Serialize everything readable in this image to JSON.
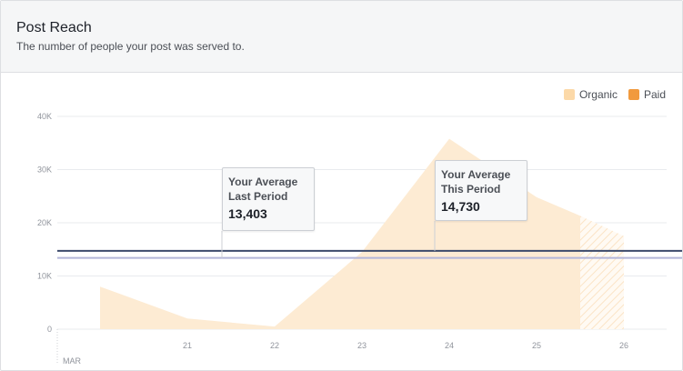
{
  "header": {
    "title": "Post Reach",
    "subtitle": "The number of people your post was served to."
  },
  "legend": [
    {
      "label": "Organic",
      "color": "#fcd9a8"
    },
    {
      "label": "Paid",
      "color": "#f19a3e"
    }
  ],
  "callouts": {
    "last_period": {
      "label": "Your Average\nLast Period",
      "value": "13,403"
    },
    "this_period": {
      "label": "Your Average\nThis Period",
      "value": "14,730"
    }
  },
  "chart_data": {
    "type": "area",
    "x": [
      "20",
      "21",
      "22",
      "23",
      "24",
      "25",
      "25.5",
      "26"
    ],
    "x_tick_labels": [
      "21",
      "22",
      "23",
      "24",
      "25",
      "26"
    ],
    "x_start_label": "MAR",
    "y_tick_labels": [
      "0",
      "10K",
      "20K",
      "30K",
      "40K"
    ],
    "ylim": [
      0,
      40000
    ],
    "grid": true,
    "legend_placement": "top-right",
    "series": [
      {
        "name": "Organic",
        "color": "#fdebd3",
        "points": [
          {
            "x": 20.0,
            "y": 8000
          },
          {
            "x": 21.0,
            "y": 2000
          },
          {
            "x": 22.0,
            "y": 500
          },
          {
            "x": 23.0,
            "y": 14500
          },
          {
            "x": 24.0,
            "y": 35800
          },
          {
            "x": 25.0,
            "y": 24800
          },
          {
            "x": 25.5,
            "y": 21300
          }
        ],
        "partial_points": [
          {
            "x": 25.5,
            "y": 21300
          },
          {
            "x": 26.0,
            "y": 17500
          }
        ]
      },
      {
        "name": "Paid",
        "color": "#f19a3e",
        "points": []
      }
    ],
    "reference_lines": [
      {
        "label": "Your Average Last Period",
        "value": 13403,
        "color": "#b3b6d9"
      },
      {
        "label": "Your Average This Period",
        "value": 14730,
        "color": "#3b4a6b"
      }
    ]
  }
}
